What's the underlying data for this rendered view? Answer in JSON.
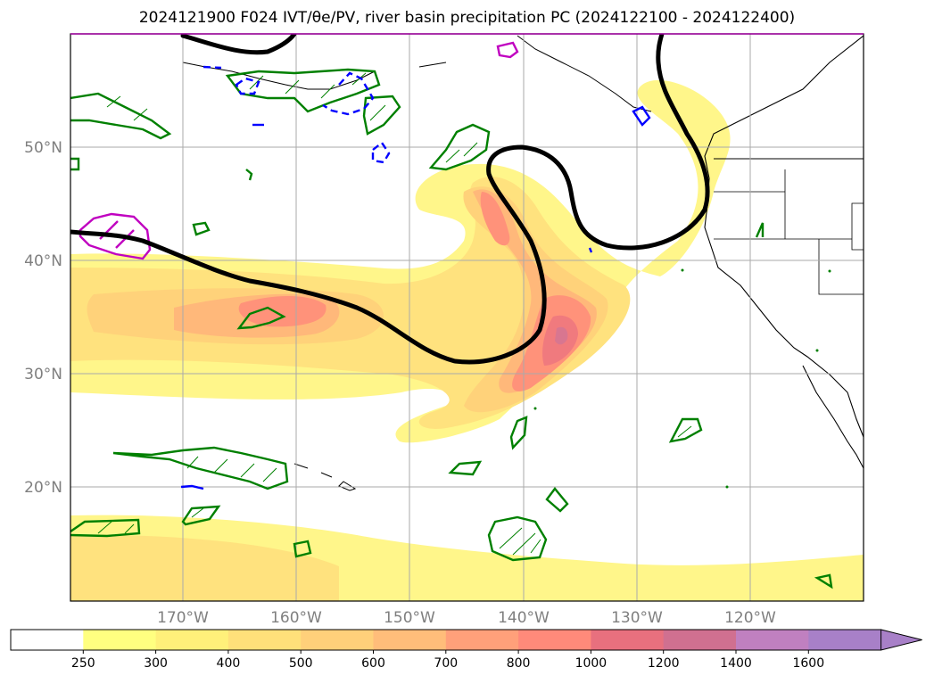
{
  "title": "2024121900 F024 IVT/θe/PV, river basin precipitation PC (2024122100 - 2024122400)",
  "map": {
    "lat_labels": [
      "50°N",
      "40°N",
      "30°N",
      "20°N"
    ],
    "lon_labels": [
      "170°W",
      "160°W",
      "150°W",
      "140°W",
      "130°W",
      "120°W"
    ]
  },
  "colorbar": {
    "levels": [
      "250",
      "300",
      "400",
      "500",
      "600",
      "700",
      "800",
      "1000",
      "1200",
      "1400",
      "1600"
    ],
    "colors": [
      "#ffffff",
      "#ffff80",
      "#fff07a",
      "#ffe07a",
      "#ffd07a",
      "#ffbd7a",
      "#ffa07a",
      "#ff8a7a",
      "#e8707e",
      "#d07090",
      "#c080c0",
      "#a880c8"
    ],
    "extend": "max"
  },
  "contour_colors": {
    "theta_e": "#000000",
    "pv_positive": "#008000",
    "pv_negative": "#0000ff",
    "pv_high": "#c000c0"
  }
}
